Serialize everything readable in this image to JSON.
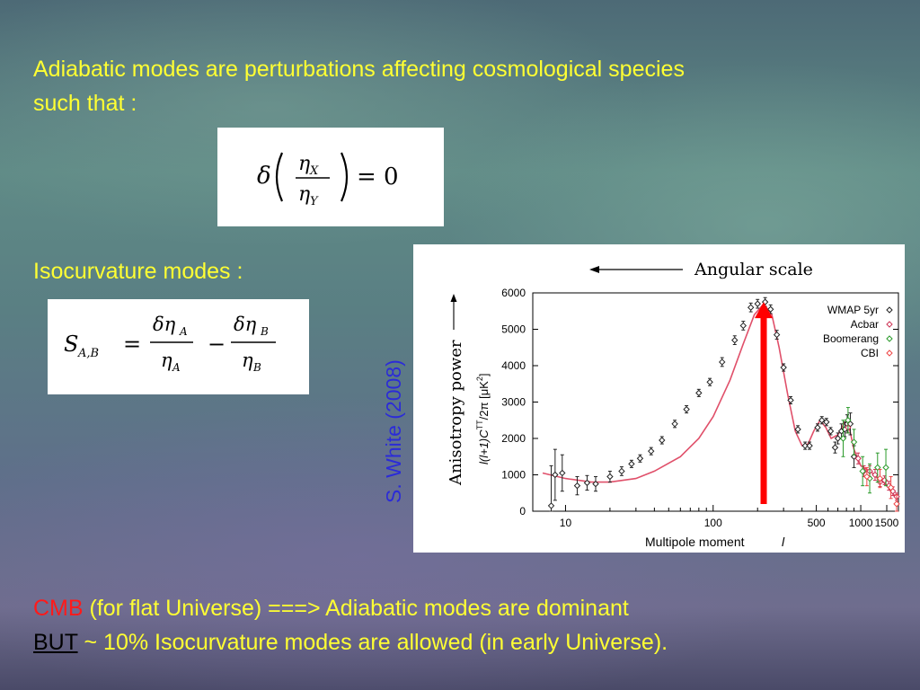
{
  "slide": {
    "intro_line1": "Adiabatic modes are perturbations affecting cosmological species",
    "intro_line2": "such that :",
    "iso_label": "Isocurvature modes :",
    "credit": "S. White (2008)",
    "bottom_cmb": "CMB",
    "bottom_rest1": " (for flat Universe) ===> Adiabatic modes are dominant",
    "bottom_but": "BUT",
    "bottom_rest2": " ~ 10% Isocurvature modes are allowed (in early Universe).",
    "colors": {
      "text": "#ffff33",
      "credit": "#2b2bd8",
      "cmb": "#ff1a1a",
      "arrow": "#ff0000"
    }
  },
  "equations": {
    "adiabatic": {
      "delta": "δ",
      "num": "η",
      "num_sub": "X",
      "den": "η",
      "den_sub": "Y",
      "rhs": "= 0"
    },
    "isocurvature": {
      "lhs": "S",
      "lhs_sub": "A,B",
      "eq": "=",
      "num1": "δη",
      "sub1": "A",
      "den1": "η",
      "dsub1": "A",
      "minus": "−",
      "num2": "δη",
      "sub2": "B",
      "den2": "η",
      "dsub2": "B"
    }
  },
  "chart_data": {
    "type": "scatter",
    "title": "Angular scale",
    "xlabel": "Multipole moment",
    "xlabel_symbol": "l",
    "ylabel_outer": "Anisotropy power",
    "ylabel_inner": "l(l+1)C",
    "ylabel_sup": "TT",
    "ylabel_tail": "/2π [μK",
    "ylabel_sup2": "2",
    "ylabel_end": "]",
    "xscale": "log",
    "xlim": [
      6,
      1800
    ],
    "ylim": [
      0,
      6000
    ],
    "xticks": [
      10,
      100,
      500,
      1000,
      1500
    ],
    "xtick_labels": [
      "10",
      "100",
      "500",
      "1000",
      "1500"
    ],
    "yticks": [
      0,
      1000,
      2000,
      3000,
      4000,
      5000,
      6000
    ],
    "ytick_labels": [
      "0",
      "1000",
      "2000",
      "3000",
      "4000",
      "5000",
      "6000"
    ],
    "legend_position": "top-right",
    "peak_marker": {
      "x": 220,
      "y": 5700,
      "color": "#ff0000"
    },
    "model_curve": {
      "color": "#e0506a",
      "x": [
        7,
        10,
        15,
        20,
        30,
        40,
        60,
        80,
        100,
        130,
        160,
        190,
        220,
        250,
        280,
        320,
        360,
        400,
        440,
        480,
        530,
        580,
        630,
        700,
        780,
        830,
        900,
        1000,
        1100,
        1200,
        1300,
        1400,
        1500,
        1600,
        1700
      ],
      "y": [
        1050,
        900,
        800,
        800,
        900,
        1100,
        1500,
        2000,
        2600,
        3600,
        4600,
        5400,
        5700,
        5400,
        4500,
        3200,
        2200,
        1800,
        1850,
        2200,
        2500,
        2300,
        2000,
        2100,
        2450,
        2350,
        1700,
        1250,
        1150,
        1050,
        900,
        820,
        720,
        560,
        420
      ]
    },
    "series": [
      {
        "name": "WMAP 5yr",
        "color": "#222222",
        "points": [
          {
            "x": 8,
            "y": 150,
            "err": 1100
          },
          {
            "x": 8.5,
            "y": 1000,
            "err": 700
          },
          {
            "x": 9.5,
            "y": 1050,
            "err": 500
          },
          {
            "x": 12,
            "y": 700,
            "err": 250
          },
          {
            "x": 14,
            "y": 780,
            "err": 200
          },
          {
            "x": 16,
            "y": 750,
            "err": 200
          },
          {
            "x": 20,
            "y": 950,
            "err": 150
          },
          {
            "x": 24,
            "y": 1100,
            "err": 120
          },
          {
            "x": 28,
            "y": 1300,
            "err": 100
          },
          {
            "x": 32,
            "y": 1450,
            "err": 100
          },
          {
            "x": 38,
            "y": 1650,
            "err": 100
          },
          {
            "x": 45,
            "y": 1950,
            "err": 100
          },
          {
            "x": 55,
            "y": 2400,
            "err": 100
          },
          {
            "x": 66,
            "y": 2800,
            "err": 100
          },
          {
            "x": 80,
            "y": 3250,
            "err": 100
          },
          {
            "x": 95,
            "y": 3550,
            "err": 100
          },
          {
            "x": 115,
            "y": 4100,
            "err": 120
          },
          {
            "x": 140,
            "y": 4700,
            "err": 120
          },
          {
            "x": 160,
            "y": 5100,
            "err": 120
          },
          {
            "x": 180,
            "y": 5600,
            "err": 120
          },
          {
            "x": 200,
            "y": 5700,
            "err": 120
          },
          {
            "x": 225,
            "y": 5750,
            "err": 120
          },
          {
            "x": 245,
            "y": 5550,
            "err": 120
          },
          {
            "x": 270,
            "y": 4850,
            "err": 120
          },
          {
            "x": 300,
            "y": 3950,
            "err": 100
          },
          {
            "x": 335,
            "y": 3050,
            "err": 100
          },
          {
            "x": 375,
            "y": 2250,
            "err": 100
          },
          {
            "x": 420,
            "y": 1800,
            "err": 100
          },
          {
            "x": 450,
            "y": 1800,
            "err": 100
          },
          {
            "x": 510,
            "y": 2300,
            "err": 100
          },
          {
            "x": 545,
            "y": 2500,
            "err": 100
          },
          {
            "x": 585,
            "y": 2450,
            "err": 100
          },
          {
            "x": 625,
            "y": 2200,
            "err": 100
          },
          {
            "x": 670,
            "y": 1750,
            "err": 150
          },
          {
            "x": 700,
            "y": 2000,
            "err": 150
          },
          {
            "x": 740,
            "y": 2200,
            "err": 200
          },
          {
            "x": 780,
            "y": 2250,
            "err": 200
          },
          {
            "x": 810,
            "y": 2400,
            "err": 250
          },
          {
            "x": 850,
            "y": 2400,
            "err": 300
          },
          {
            "x": 900,
            "y": 1500,
            "err": 300
          }
        ]
      },
      {
        "name": "Acbar",
        "color": "#cc3355",
        "points": [
          {
            "x": 820,
            "y": 2300,
            "err": 150
          },
          {
            "x": 960,
            "y": 1450,
            "err": 150
          },
          {
            "x": 1050,
            "y": 1100,
            "err": 150
          },
          {
            "x": 1150,
            "y": 1100,
            "err": 150
          },
          {
            "x": 1250,
            "y": 1000,
            "err": 150
          },
          {
            "x": 1350,
            "y": 800,
            "err": 120
          },
          {
            "x": 1450,
            "y": 850,
            "err": 120
          },
          {
            "x": 1550,
            "y": 700,
            "err": 120
          },
          {
            "x": 1650,
            "y": 550,
            "err": 120
          },
          {
            "x": 1750,
            "y": 400,
            "err": 100
          }
        ]
      },
      {
        "name": "Boomerang",
        "color": "#2a9a2a",
        "points": [
          {
            "x": 760,
            "y": 2000,
            "err": 500
          },
          {
            "x": 820,
            "y": 2500,
            "err": 350
          },
          {
            "x": 900,
            "y": 1900,
            "err": 350
          },
          {
            "x": 1030,
            "y": 1100,
            "err": 400
          },
          {
            "x": 1150,
            "y": 900,
            "err": 400
          },
          {
            "x": 1300,
            "y": 1200,
            "err": 400
          },
          {
            "x": 1480,
            "y": 1200,
            "err": 500
          }
        ]
      },
      {
        "name": "CBI",
        "color": "#ee4444",
        "points": [
          {
            "x": 1100,
            "y": 950,
            "err": 250
          },
          {
            "x": 1350,
            "y": 900,
            "err": 250
          },
          {
            "x": 1600,
            "y": 650,
            "err": 300
          },
          {
            "x": 1750,
            "y": 200,
            "err": 250
          }
        ]
      }
    ]
  }
}
